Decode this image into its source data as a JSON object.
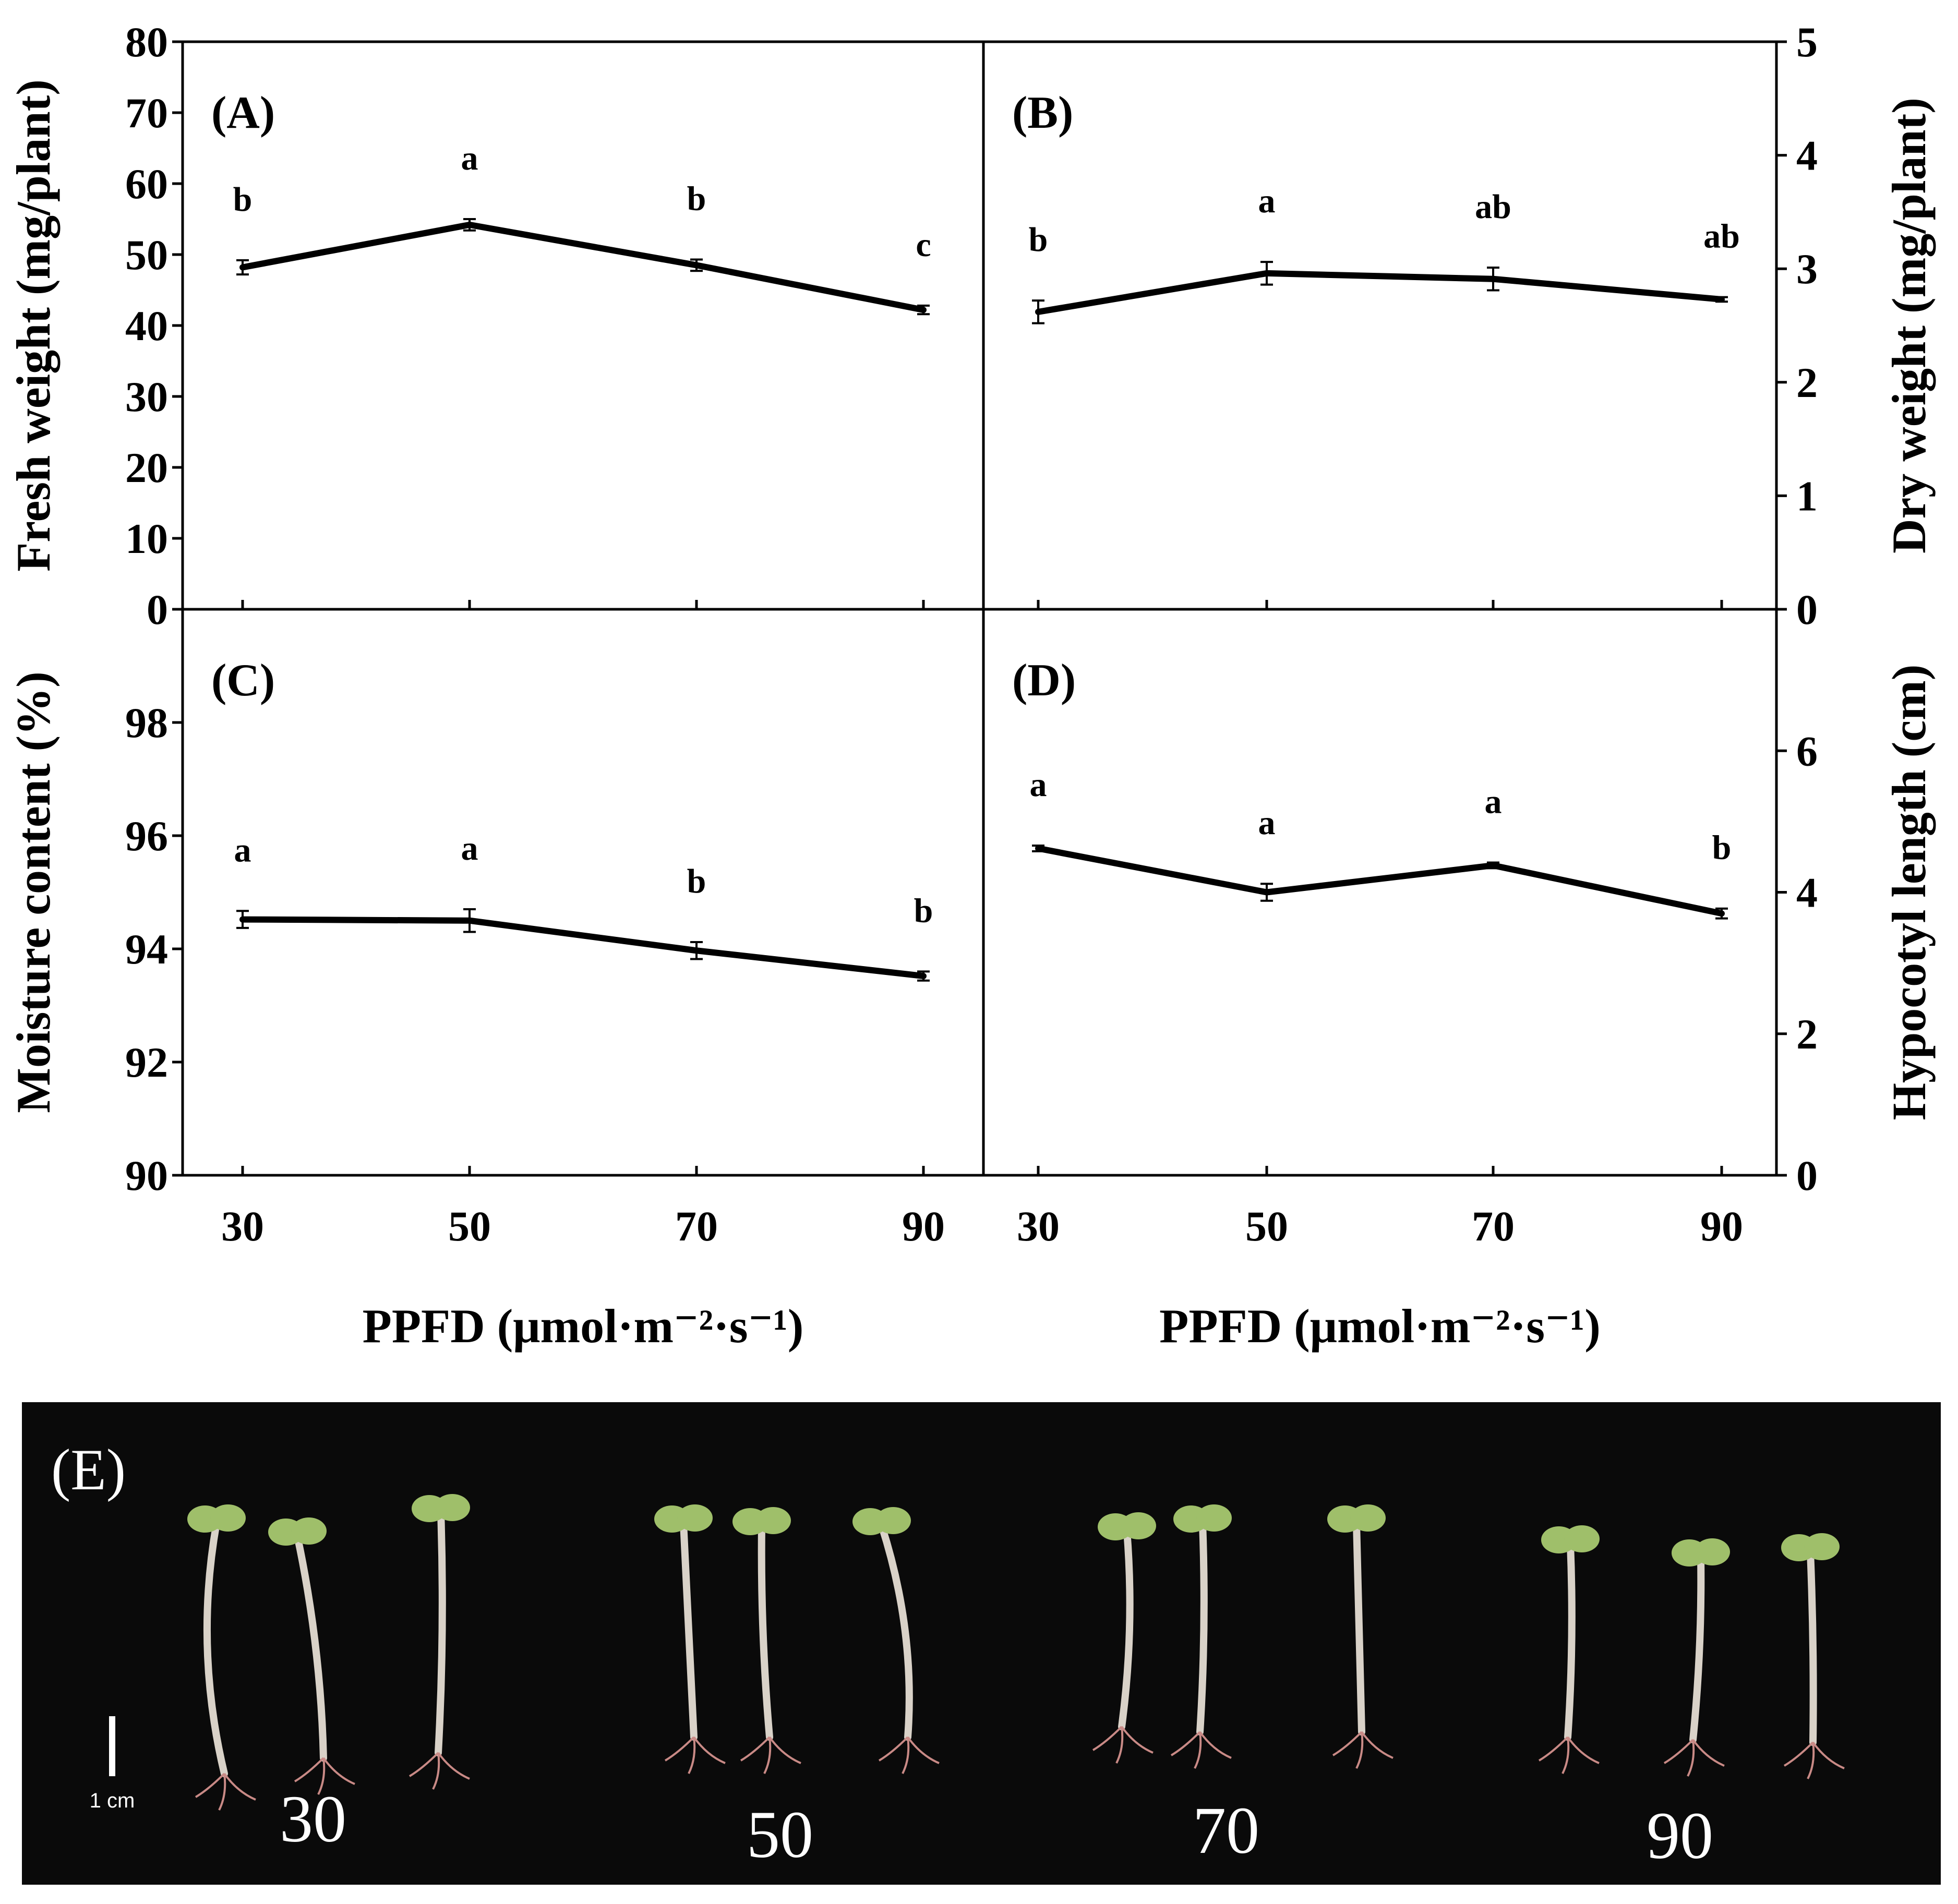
{
  "chart_data": [
    {
      "panel": "(A)",
      "type": "line",
      "x": [
        30,
        50,
        70,
        90
      ],
      "values": [
        48.2,
        54.2,
        48.5,
        42.2
      ],
      "errors": [
        1.0,
        0.8,
        0.8,
        0.6
      ],
      "significance": [
        "b",
        "a",
        "b",
        "c"
      ],
      "ylabel": "Fresh weight (mg/plant)",
      "ylim": [
        0,
        80
      ],
      "yticks": [
        0,
        10,
        20,
        30,
        40,
        50,
        60,
        70,
        80
      ],
      "yaxis_side": "left"
    },
    {
      "panel": "(B)",
      "type": "line",
      "x": [
        30,
        50,
        70,
        90
      ],
      "values": [
        2.62,
        2.96,
        2.91,
        2.73
      ],
      "errors": [
        0.1,
        0.1,
        0.1,
        0.02
      ],
      "significance": [
        "b",
        "a",
        "ab",
        "ab"
      ],
      "ylabel": "Dry weight (mg/plant)",
      "ylim": [
        0,
        5
      ],
      "yticks": [
        0,
        1,
        2,
        3,
        4,
        5
      ],
      "yaxis_side": "right"
    },
    {
      "panel": "(C)",
      "type": "line",
      "x": [
        30,
        50,
        70,
        90
      ],
      "xlabel": "PPFD (μmol·m⁻²·s⁻¹)",
      "xticks": [
        "30",
        "50",
        "70",
        "90"
      ],
      "values": [
        94.52,
        94.5,
        93.97,
        93.52
      ],
      "errors": [
        0.15,
        0.2,
        0.15,
        0.08
      ],
      "significance": [
        "a",
        "a",
        "b",
        "b"
      ],
      "ylabel": "Moisture content (%)",
      "ylim": [
        90,
        100
      ],
      "yticks": [
        90,
        92,
        94,
        96,
        98
      ],
      "yaxis_side": "left"
    },
    {
      "panel": "(D)",
      "type": "line",
      "x": [
        30,
        50,
        70,
        90
      ],
      "xlabel": "PPFD (μmol·m⁻²·s⁻¹)",
      "xticks": [
        "30",
        "50",
        "70",
        "90"
      ],
      "values": [
        4.62,
        4.0,
        4.38,
        3.7
      ],
      "errors": [
        0.04,
        0.12,
        0.04,
        0.07
      ],
      "significance": [
        "a",
        "a",
        "a",
        "b"
      ],
      "ylabel": "Hypocotyl length (cm)",
      "ylim": [
        0,
        8
      ],
      "yticks": [
        0,
        2,
        4,
        6
      ],
      "yaxis_side": "right"
    }
  ],
  "photo": {
    "label": "(E)",
    "scale_bar_label": "1 cm",
    "group_labels": [
      "30",
      "50",
      "70",
      "90"
    ]
  },
  "colors": {
    "line": "#000000",
    "photo_background": "#0a0a0a",
    "stem": "#d9d2c8",
    "cotyledon": "#9fbf6a",
    "root": "#c98a86"
  }
}
